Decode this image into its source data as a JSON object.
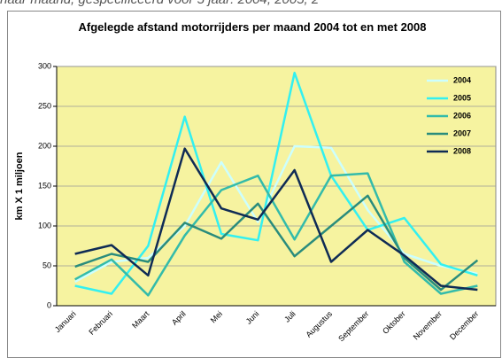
{
  "header_text": "naar maand, gespecificeerd voor 5 jaar: 2004, 2005, 2",
  "chart_data": {
    "type": "line",
    "title": "Afgelegde afstand motorrijders per maand 2004 tot en met 2008",
    "y_label": "km X 1 miljoen",
    "categories": [
      "Januari",
      "Februari",
      "Maart",
      "April",
      "Mei",
      "Juni",
      "Juli",
      "Augustus",
      "September",
      "Oktober",
      "November",
      "December"
    ],
    "series": [
      {
        "name": "2004",
        "color": "#ccffff",
        "values": [
          30,
          55,
          60,
          100,
          180,
          105,
          200,
          198,
          120,
          65,
          50,
          40
        ]
      },
      {
        "name": "2005",
        "color": "#33f0f0",
        "values": [
          25,
          15,
          75,
          237,
          90,
          82,
          292,
          163,
          95,
          110,
          52,
          38
        ]
      },
      {
        "name": "2006",
        "color": "#33bbaa",
        "values": [
          33,
          58,
          13,
          88,
          145,
          163,
          83,
          163,
          166,
          55,
          15,
          25
        ]
      },
      {
        "name": "2007",
        "color": "#2a8c7c",
        "values": [
          49,
          65,
          55,
          104,
          84,
          128,
          62,
          100,
          138,
          60,
          20,
          57
        ]
      },
      {
        "name": "2008",
        "color": "#0f2b55",
        "values": [
          65,
          76,
          38,
          197,
          122,
          108,
          170,
          55,
          95,
          63,
          25,
          20
        ]
      }
    ],
    "ylim": [
      0,
      300
    ],
    "yticks": [
      0,
      50,
      100,
      150,
      200,
      250,
      300
    ],
    "grid": true,
    "legend": "upper right",
    "plot_background": "#f6f3a0"
  }
}
